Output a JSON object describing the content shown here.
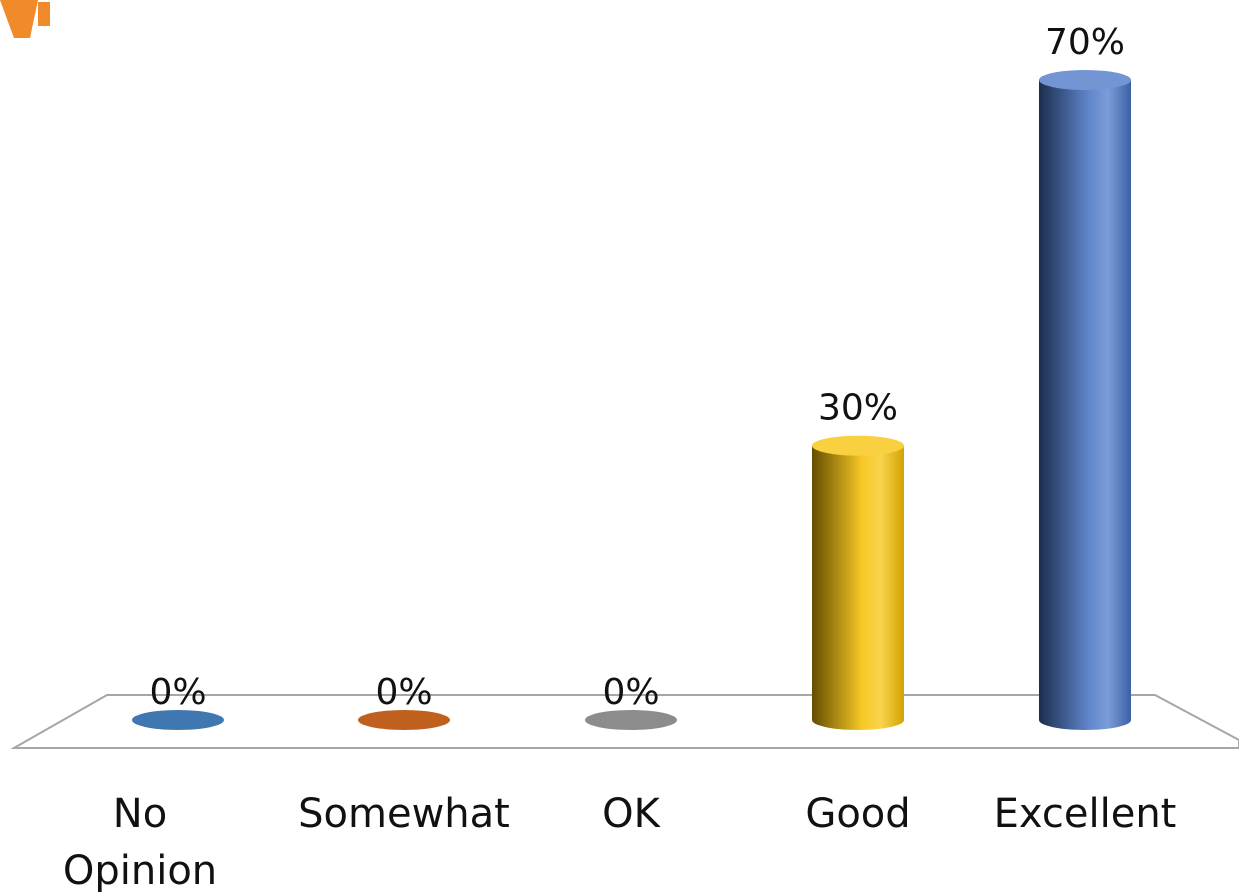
{
  "chart_data": {
    "type": "bar",
    "style": "3d-cylinder",
    "categories": [
      "No Opinion",
      "Somewhat",
      "OK",
      "Good",
      "Excellent"
    ],
    "category_lines": [
      [
        "No",
        "Opinion"
      ],
      [
        "Somewhat"
      ],
      [
        "OK"
      ],
      [
        "Good"
      ],
      [
        "Excellent"
      ]
    ],
    "values": [
      0,
      0,
      0,
      30,
      70
    ],
    "value_labels": [
      "0%",
      "0%",
      "0%",
      "30%",
      "70%"
    ],
    "colors": [
      "#3f78b0",
      "#c0601e",
      "#8c8c8c",
      "#f7c000",
      "#4472c4"
    ],
    "ylim": [
      0,
      70
    ],
    "grid": false,
    "legend": "none",
    "title": "",
    "xlabel": "",
    "ylabel": ""
  }
}
